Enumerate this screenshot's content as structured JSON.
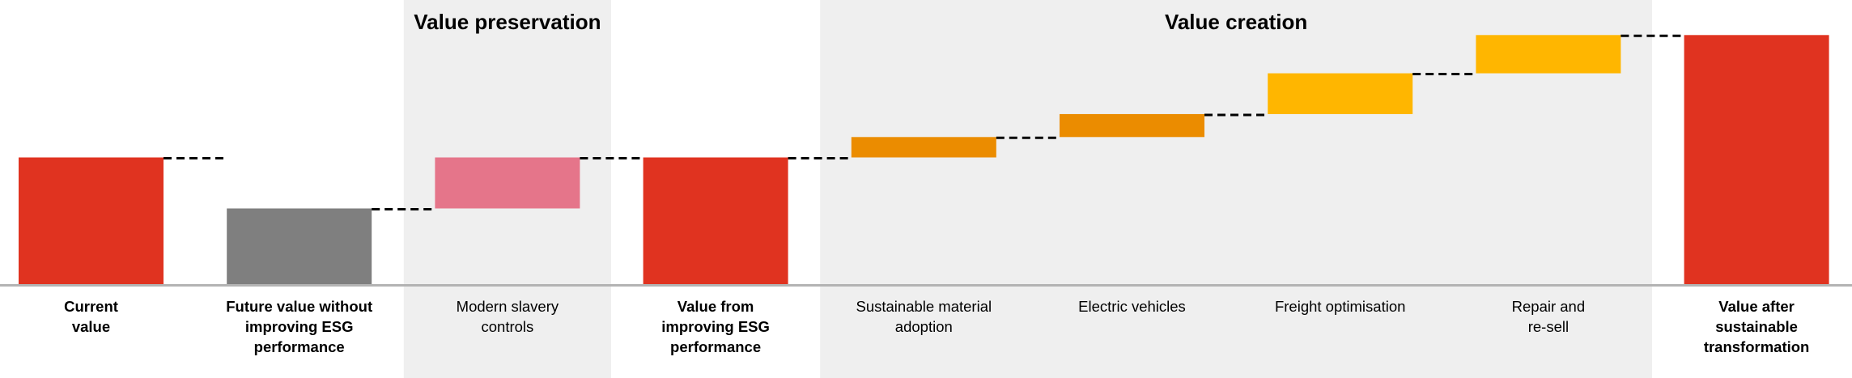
{
  "chart_data": {
    "type": "waterfall",
    "title": "",
    "groups": [
      {
        "name": "Value preservation",
        "categories": [
          2
        ]
      },
      {
        "name": "Value creation",
        "categories": [
          4,
          5,
          6,
          7
        ]
      }
    ],
    "categories": [
      "Current\nvalue",
      "Future value without\nimproving ESG\nperformance",
      "Modern slavery\ncontrols",
      "Value from\nimproving ESG\nperformance",
      "Sustainable material\nadoption",
      "Electric vehicles",
      "Freight optimisation",
      "Repair and\nre-sell",
      "Value after\nsustainable\ntransformation"
    ],
    "bars": [
      {
        "kind": "total",
        "value": 50,
        "color": "#E03320"
      },
      {
        "kind": "total",
        "value": 30,
        "color": "#7F7F7F"
      },
      {
        "kind": "delta",
        "value": 20,
        "color": "#E5758A"
      },
      {
        "kind": "total",
        "value": 50,
        "color": "#E03320"
      },
      {
        "kind": "delta",
        "value": 8,
        "color": "#EB8C00"
      },
      {
        "kind": "delta",
        "value": 9,
        "color": "#EB8C00"
      },
      {
        "kind": "delta",
        "value": 16,
        "color": "#FFB600"
      },
      {
        "kind": "delta",
        "value": 15,
        "color": "#FFB600"
      },
      {
        "kind": "total",
        "value": 98,
        "color": "#E03320"
      }
    ],
    "ylim": [
      0,
      100
    ],
    "axis_labels_shown": false,
    "grid": false,
    "band_color": "#EFEFEF",
    "axis_color": "#B3B3B3",
    "connector_style": "dashed black"
  }
}
